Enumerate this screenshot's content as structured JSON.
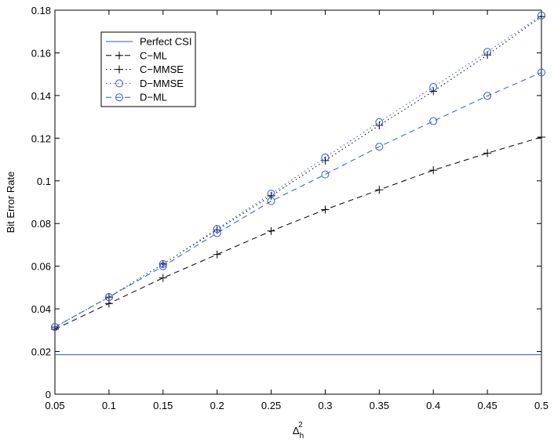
{
  "chart_data": {
    "type": "line",
    "xlabel": "Δ",
    "xlabel_sub": "h",
    "xlabel_sup": "2",
    "ylabel": "Bit Error Rate",
    "xlim": [
      0.05,
      0.5
    ],
    "ylim": [
      0,
      0.18
    ],
    "xticks": [
      0.05,
      0.1,
      0.15,
      0.2,
      0.25,
      0.3,
      0.35,
      0.4,
      0.45,
      0.5
    ],
    "xtick_labels": [
      "0.05",
      "0.1",
      "0.15",
      "0.2",
      "0.25",
      "0.3",
      "0.35",
      "0.4",
      "0.45",
      "0.5"
    ],
    "yticks": [
      0,
      0.02,
      0.04,
      0.06,
      0.08,
      0.1,
      0.12,
      0.14,
      0.16,
      0.18
    ],
    "ytick_labels": [
      "0",
      "0.02",
      "0.04",
      "0.06",
      "0.08",
      "0.1",
      "0.12",
      "0.14",
      "0.16",
      "0.18"
    ],
    "grid": false,
    "legend_position": "top-left",
    "x": [
      0.05,
      0.1,
      0.15,
      0.2,
      0.25,
      0.3,
      0.35,
      0.4,
      0.45,
      0.5
    ],
    "series": [
      {
        "name": "Perfect CSI",
        "color": "#3355dd",
        "line": "solid",
        "marker": "none",
        "values": [
          0.0185,
          0.0185,
          0.0185,
          0.0185,
          0.0185,
          0.0185,
          0.0185,
          0.0185,
          0.0185,
          0.0185
        ]
      },
      {
        "name": "C−ML",
        "color": "#000000",
        "line": "dashed",
        "marker": "plus",
        "values": [
          0.0305,
          0.0425,
          0.0545,
          0.0655,
          0.0765,
          0.0865,
          0.0958,
          0.105,
          0.113,
          0.1205
        ]
      },
      {
        "name": "C−MMSE",
        "color": "#000000",
        "line": "dotted",
        "marker": "plus",
        "values": [
          0.0315,
          0.0455,
          0.061,
          0.077,
          0.093,
          0.1095,
          0.126,
          0.142,
          0.159,
          0.177
        ]
      },
      {
        "name": "D−MMSE",
        "color": "#3355dd",
        "line": "dotted",
        "marker": "circle",
        "values": [
          0.0315,
          0.0455,
          0.061,
          0.0775,
          0.094,
          0.111,
          0.1275,
          0.144,
          0.1605,
          0.1775
        ]
      },
      {
        "name": "D−ML",
        "color": "#3355dd",
        "line": "dashed",
        "marker": "circle",
        "values": [
          0.0315,
          0.0455,
          0.06,
          0.0755,
          0.0905,
          0.103,
          0.116,
          0.128,
          0.1398,
          0.1508
        ]
      }
    ]
  }
}
